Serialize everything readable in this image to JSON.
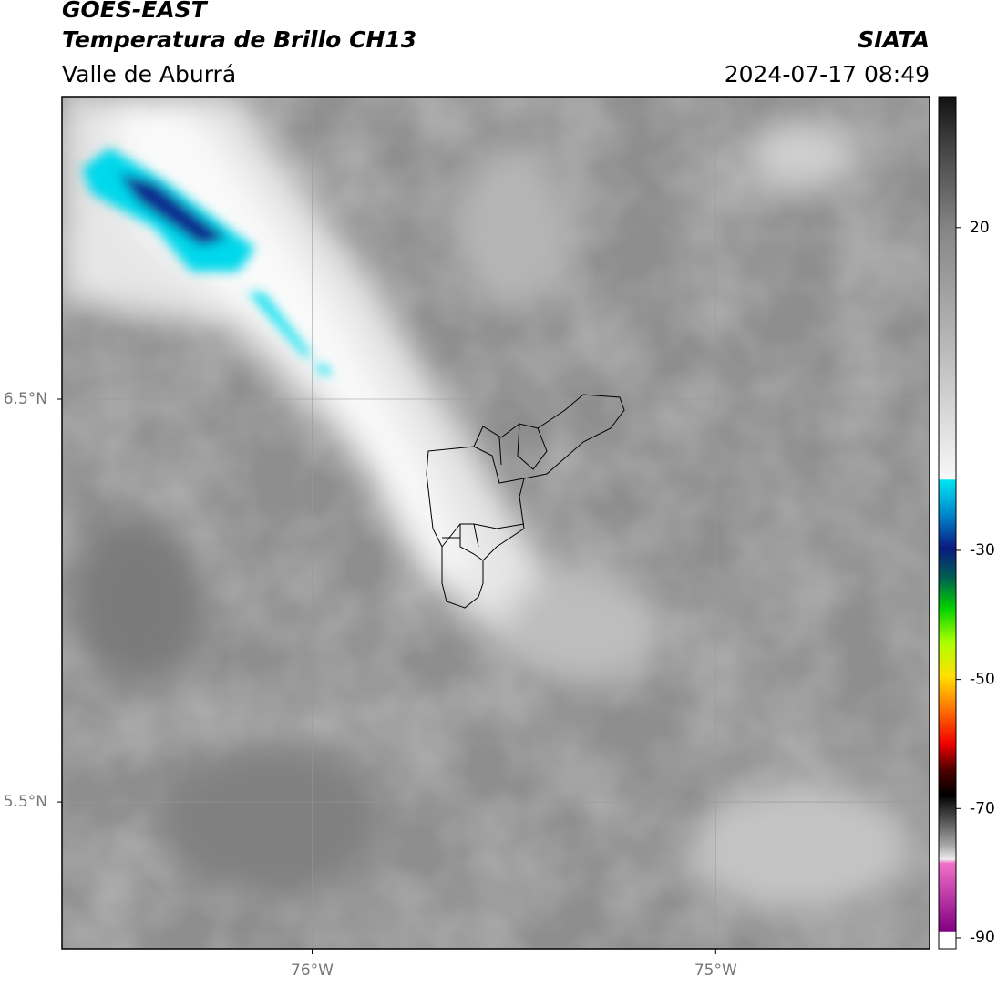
{
  "header": {
    "title": "GOES-EAST",
    "subtitle": "Temperatura de Brillo CH13",
    "region": "Valle de Aburrá",
    "source": "SIATA",
    "datetime": "2024-07-17 08:49"
  },
  "map": {
    "lonlim": [
      -76.62,
      -74.47
    ],
    "latlim": [
      5.136,
      7.251
    ],
    "lon_ticks": [
      {
        "value": -76,
        "label": "76°W"
      },
      {
        "value": -75,
        "label": "75°W"
      }
    ],
    "lat_ticks": [
      {
        "value": 6.5,
        "label": "6.5°N"
      },
      {
        "value": 5.5,
        "label": "5.5°N"
      }
    ]
  },
  "colorbar": {
    "lim": [
      -91.7,
      40.3
    ],
    "ticks": [
      20,
      -30,
      -50,
      -70,
      -90
    ]
  }
}
